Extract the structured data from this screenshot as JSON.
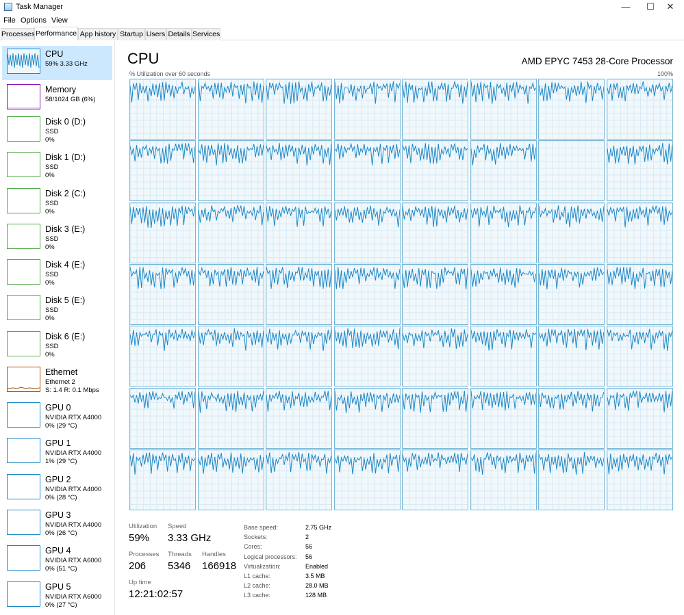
{
  "window": {
    "title": "Task Manager",
    "minimize": "—",
    "maximize": "☐",
    "close": "✕"
  },
  "menu": [
    "File",
    "Options",
    "View"
  ],
  "tabs": [
    "Processes",
    "Performance",
    "App history",
    "Startup",
    "Users",
    "Details",
    "Services"
  ],
  "active_tab": "Performance",
  "sidebar": [
    {
      "name": "CPU",
      "line1": "59% 3.33 GHz",
      "line2": "",
      "kind": "cpu"
    },
    {
      "name": "Memory",
      "line1": "58/1024 GB (6%)",
      "line2": "",
      "kind": "memory"
    },
    {
      "name": "Disk 0 (D:)",
      "line1": "SSD",
      "line2": "0%",
      "kind": "disk"
    },
    {
      "name": "Disk 1 (D:)",
      "line1": "SSD",
      "line2": "0%",
      "kind": "disk"
    },
    {
      "name": "Disk 2 (C:)",
      "line1": "SSD",
      "line2": "0%",
      "kind": "disk"
    },
    {
      "name": "Disk 3 (E:)",
      "line1": "SSD",
      "line2": "0%",
      "kind": "disk"
    },
    {
      "name": "Disk 4 (E:)",
      "line1": "SSD",
      "line2": "0%",
      "kind": "disk"
    },
    {
      "name": "Disk 5 (E:)",
      "line1": "SSD",
      "line2": "0%",
      "kind": "disk"
    },
    {
      "name": "Disk 6 (E:)",
      "line1": "SSD",
      "line2": "0%",
      "kind": "disk"
    },
    {
      "name": "Ethernet",
      "line1": "Ethernet 2",
      "line2": "S: 1.4  R: 0.1 Mbps",
      "kind": "ethernet"
    },
    {
      "name": "GPU 0",
      "line1": "NVIDIA RTX A4000",
      "line2": "0% (29 °C)",
      "kind": "gpu"
    },
    {
      "name": "GPU 1",
      "line1": "NVIDIA RTX A4000",
      "line2": "1% (29 °C)",
      "kind": "gpu"
    },
    {
      "name": "GPU 2",
      "line1": "NVIDIA RTX A4000",
      "line2": "0% (28 °C)",
      "kind": "gpu"
    },
    {
      "name": "GPU 3",
      "line1": "NVIDIA RTX A4000",
      "line2": "0% (26 °C)",
      "kind": "gpu"
    },
    {
      "name": "GPU 4",
      "line1": "NVIDIA RTX A6000",
      "line2": "0% (51 °C)",
      "kind": "gpu"
    },
    {
      "name": "GPU 5",
      "line1": "NVIDIA RTX A6000",
      "line2": "0% (27 °C)",
      "kind": "gpu"
    }
  ],
  "main": {
    "title": "CPU",
    "model": "AMD EPYC 7453 28-Core Processor",
    "graph_label": "% Utilization over 60 seconds",
    "graph_max": "100%",
    "core_rows": 7,
    "core_cols": 8,
    "idle_cores": [
      14
    ]
  },
  "stats": {
    "utilization_label": "Utilization",
    "utilization": "59%",
    "speed_label": "Speed",
    "speed": "3.33 GHz",
    "processes_label": "Processes",
    "processes": "206",
    "threads_label": "Threads",
    "threads": "5346",
    "handles_label": "Handles",
    "handles": "166918",
    "uptime_label": "Up time",
    "uptime": "12:21:02:57"
  },
  "details": [
    {
      "label": "Base speed:",
      "value": "2.75 GHz"
    },
    {
      "label": "Sockets:",
      "value": "2"
    },
    {
      "label": "Cores:",
      "value": "56"
    },
    {
      "label": "Logical processors:",
      "value": "56"
    },
    {
      "label": "Virtualization:",
      "value": "Enabled"
    },
    {
      "label": "L1 cache:",
      "value": "3.5 MB"
    },
    {
      "label": "L2 cache:",
      "value": "28.0 MB"
    },
    {
      "label": "L3 cache:",
      "value": "128 MB"
    }
  ],
  "colors": {
    "cpu": "#1b87c6",
    "memory": "#8b12ae",
    "disk": "#4fa845",
    "ethernet": "#a74f01",
    "gpu": "#1b87c6",
    "selected": "#cce8ff"
  }
}
